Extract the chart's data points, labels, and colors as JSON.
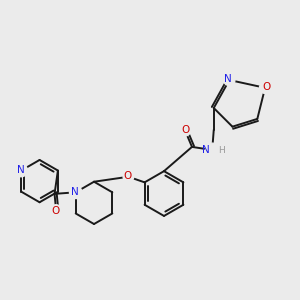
{
  "bg_color": "#ebebeb",
  "bond_color": "#1a1a1a",
  "bond_width": 1.4,
  "dbo": 0.06,
  "atom_colors": {
    "N": "#2020e8",
    "O": "#cc0000",
    "H": "#999999",
    "C": "#1a1a1a"
  },
  "font_size": 7.5,
  "fig_size": [
    3.0,
    3.0
  ],
  "dpi": 100
}
